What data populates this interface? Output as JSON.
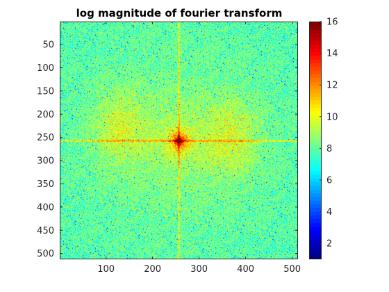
{
  "chart_data": {
    "type": "heatmap",
    "title": "log magnitude of fourier transform",
    "xlabel": "",
    "ylabel": "",
    "image_size": [
      512,
      512
    ],
    "xlim": [
      0.5,
      512.5
    ],
    "ylim": [
      0.5,
      512.5
    ],
    "y_reversed": true,
    "x_ticks": [
      100,
      200,
      300,
      400,
      500
    ],
    "y_ticks": [
      50,
      100,
      150,
      200,
      250,
      300,
      350,
      400,
      450,
      500
    ],
    "colormap": "jet",
    "colorbar": {
      "limits": [
        1,
        16
      ],
      "ticks": [
        2,
        4,
        6,
        8,
        10,
        12,
        14,
        16
      ],
      "placement": "right"
    },
    "background_level": 8.5,
    "peak": {
      "x": 257,
      "y": 257,
      "value": 16
    },
    "features": [
      {
        "name": "horizontal streak",
        "row": 257,
        "value": 11
      },
      {
        "name": "vertical streak",
        "column": 257,
        "value": 11
      },
      {
        "name": "left lobe",
        "x": 130,
        "y": 230,
        "value": 10.5
      },
      {
        "name": "right lobe",
        "x": 370,
        "y": 250,
        "value": 10.5
      }
    ],
    "grid": false
  }
}
